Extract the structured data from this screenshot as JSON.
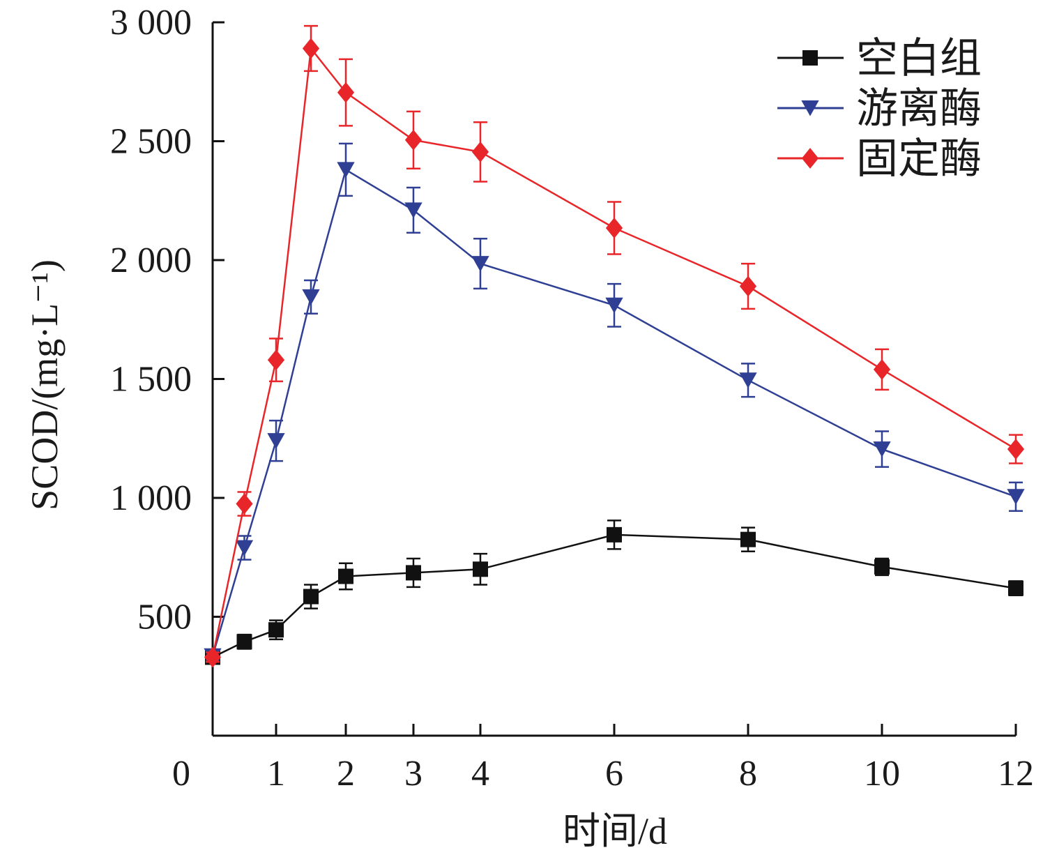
{
  "chart_data": {
    "type": "line",
    "title": "",
    "xlabel": "时间/d",
    "ylabel": "SCOD/(mg·L⁻¹)",
    "xlim": [
      0,
      12
    ],
    "ylim": [
      0,
      3000
    ],
    "x_ticks": [
      {
        "value": 0,
        "label": "0"
      },
      {
        "value": 1,
        "label": "1"
      },
      {
        "value": 2,
        "label": "2"
      },
      {
        "value": 3,
        "label": "3"
      },
      {
        "value": 4,
        "label": "4"
      },
      {
        "value": 6,
        "label": "6"
      },
      {
        "value": 8,
        "label": "8"
      },
      {
        "value": 10,
        "label": "10"
      },
      {
        "value": 12,
        "label": "12"
      }
    ],
    "y_ticks": [
      {
        "value": 500,
        "label": "500"
      },
      {
        "value": 1000,
        "label": "1 000"
      },
      {
        "value": 1500,
        "label": "1 500"
      },
      {
        "value": 2000,
        "label": "2 000"
      },
      {
        "value": 2500,
        "label": "2 500"
      },
      {
        "value": 3000,
        "label": "3 000"
      }
    ],
    "grid": false,
    "legend_position": "top-right",
    "series": [
      {
        "name": "空白组",
        "color": "#111111",
        "marker": "square",
        "points": [
          {
            "x": 0,
            "y": 330,
            "err": 20
          },
          {
            "x": 0.5,
            "y": 395,
            "err": 30
          },
          {
            "x": 1,
            "y": 445,
            "err": 40
          },
          {
            "x": 1.5,
            "y": 585,
            "err": 50
          },
          {
            "x": 2,
            "y": 670,
            "err": 55
          },
          {
            "x": 3,
            "y": 685,
            "err": 60
          },
          {
            "x": 4,
            "y": 700,
            "err": 65
          },
          {
            "x": 6,
            "y": 845,
            "err": 60
          },
          {
            "x": 8,
            "y": 825,
            "err": 50
          },
          {
            "x": 10,
            "y": 710,
            "err": 35
          },
          {
            "x": 12,
            "y": 620,
            "err": 30
          }
        ]
      },
      {
        "name": "游离酶",
        "color": "#2e3f94",
        "marker": "triangle-down",
        "points": [
          {
            "x": 0,
            "y": 335,
            "err": 20
          },
          {
            "x": 0.5,
            "y": 790,
            "err": 50
          },
          {
            "x": 1,
            "y": 1240,
            "err": 85
          },
          {
            "x": 1.5,
            "y": 1845,
            "err": 70
          },
          {
            "x": 2,
            "y": 2380,
            "err": 110
          },
          {
            "x": 3,
            "y": 2210,
            "err": 95
          },
          {
            "x": 4,
            "y": 1985,
            "err": 105
          },
          {
            "x": 6,
            "y": 1810,
            "err": 90
          },
          {
            "x": 8,
            "y": 1495,
            "err": 70
          },
          {
            "x": 10,
            "y": 1205,
            "err": 75
          },
          {
            "x": 12,
            "y": 1005,
            "err": 60
          }
        ]
      },
      {
        "name": "固定酶",
        "color": "#e8262a",
        "marker": "diamond",
        "points": [
          {
            "x": 0,
            "y": 330,
            "err": 20
          },
          {
            "x": 0.5,
            "y": 975,
            "err": 50
          },
          {
            "x": 1,
            "y": 1580,
            "err": 90
          },
          {
            "x": 1.5,
            "y": 2890,
            "err": 95
          },
          {
            "x": 2,
            "y": 2705,
            "err": 140
          },
          {
            "x": 3,
            "y": 2505,
            "err": 120
          },
          {
            "x": 4,
            "y": 2455,
            "err": 125
          },
          {
            "x": 6,
            "y": 2135,
            "err": 110
          },
          {
            "x": 8,
            "y": 1890,
            "err": 95
          },
          {
            "x": 10,
            "y": 1540,
            "err": 85
          },
          {
            "x": 12,
            "y": 1205,
            "err": 60
          }
        ]
      }
    ]
  }
}
